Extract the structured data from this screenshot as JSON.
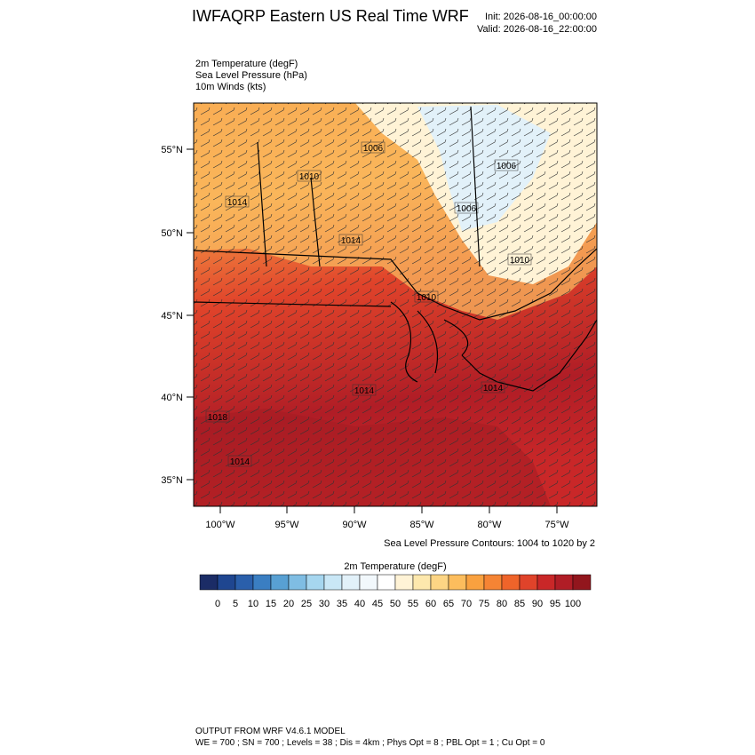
{
  "header": {
    "title": "IWFAQRP Eastern US Real Time WRF",
    "init": "Init: 2026-08-16_00:00:00",
    "valid": "Valid: 2026-08-16_22:00:00"
  },
  "fields": [
    "2m Temperature   (degF)",
    "Sea Level Pressure   (hPa)",
    "10m Winds   (kts)"
  ],
  "map": {
    "lat_labels": [
      "55°N",
      "50°N",
      "45°N",
      "40°N",
      "35°N"
    ],
    "lon_labels": [
      "100°W",
      "95°W",
      "90°W",
      "85°W",
      "80°W",
      "75°W"
    ],
    "contour_labels": [
      "1006",
      "1010",
      "1014",
      "1014",
      "1006",
      "1006",
      "1010",
      "1010",
      "1014",
      "1014",
      "1018",
      "1014"
    ]
  },
  "contour_note": "Sea Level Pressure Contours: 1004 to 1020 by 2",
  "colorbar": {
    "title": "2m Temperature  (degF)",
    "colors": [
      "#1b2c66",
      "#1f4690",
      "#2a5fab",
      "#3a7ec2",
      "#58a0d3",
      "#7fbde3",
      "#a6d6ef",
      "#c9e7f6",
      "#e2f1f9",
      "#f2f8fc",
      "#ffffff",
      "#fff3d6",
      "#fde8ad",
      "#fdd584",
      "#fcbd5d",
      "#f9a13f",
      "#f58434",
      "#ef642a",
      "#e0432a",
      "#c92728",
      "#b01d26",
      "#92161d"
    ],
    "ticks": [
      0,
      5,
      10,
      15,
      20,
      25,
      30,
      35,
      40,
      45,
      50,
      55,
      60,
      65,
      70,
      75,
      80,
      85,
      90,
      95,
      100
    ]
  },
  "footer": [
    "OUTPUT FROM WRF V4.6.1 MODEL",
    "WE = 700 ; SN = 700 ; Levels = 38 ; Dis = 4km ; Phys Opt = 8 ; PBL Opt = 1 ; Cu Opt = 0"
  ]
}
